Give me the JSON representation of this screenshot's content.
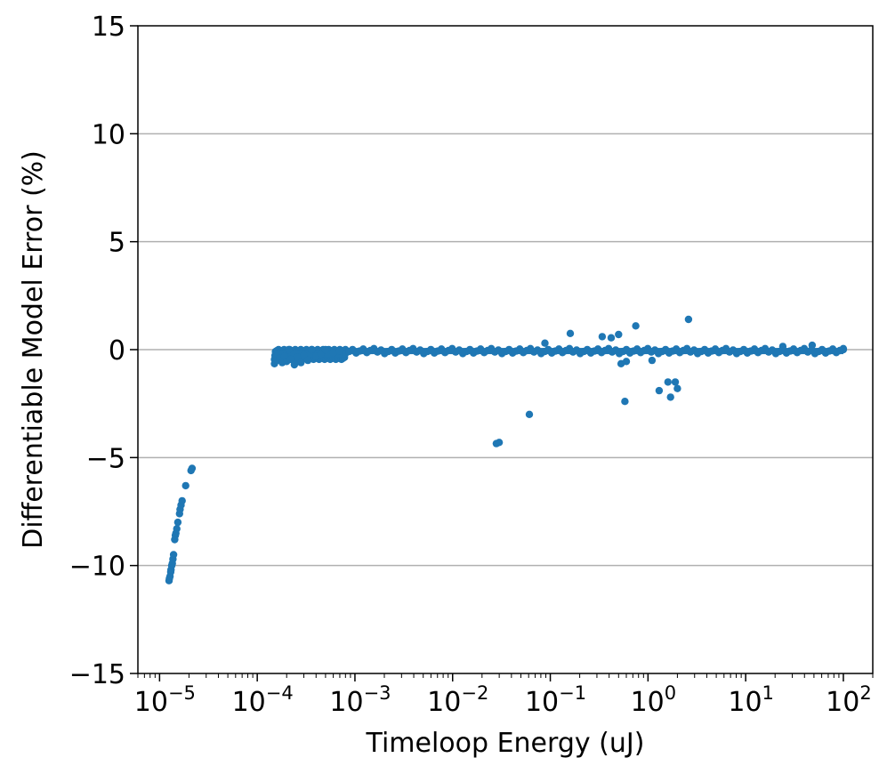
{
  "chart_data": {
    "type": "scatter",
    "title": "",
    "xlabel": "Timeloop Energy (uJ)",
    "ylabel": "Differentiable Model Error (%)",
    "xscale": "log",
    "xlim": [
      6e-06,
      200
    ],
    "ylim": [
      -15,
      15
    ],
    "xticks": [
      {
        "value": 1e-05,
        "base": "10",
        "exp": "−5"
      },
      {
        "value": 0.0001,
        "base": "10",
        "exp": "−4"
      },
      {
        "value": 0.001,
        "base": "10",
        "exp": "−3"
      },
      {
        "value": 0.01,
        "base": "10",
        "exp": "−2"
      },
      {
        "value": 0.1,
        "base": "10",
        "exp": "−1"
      },
      {
        "value": 1,
        "base": "10",
        "exp": "0"
      },
      {
        "value": 10,
        "base": "10",
        "exp": "1"
      },
      {
        "value": 100,
        "base": "10",
        "exp": "2"
      }
    ],
    "yticks": [
      {
        "value": 15,
        "label": "15"
      },
      {
        "value": 10,
        "label": "10"
      },
      {
        "value": 5,
        "label": "5"
      },
      {
        "value": 0,
        "label": "0"
      },
      {
        "value": -5,
        "label": "−5"
      },
      {
        "value": -10,
        "label": "−10"
      },
      {
        "value": -15,
        "label": "−15"
      }
    ],
    "grid": "y-major",
    "legend": "none",
    "color": "#1f77b4",
    "series": [
      {
        "points": [
          [
            1.25e-05,
            -10.7
          ],
          [
            1.26e-05,
            -10.6
          ],
          [
            1.28e-05,
            -10.5
          ],
          [
            1.3e-05,
            -10.3
          ],
          [
            1.31e-05,
            -10.2
          ],
          [
            1.33e-05,
            -10.0
          ],
          [
            1.35e-05,
            -9.9
          ],
          [
            1.37e-05,
            -9.7
          ],
          [
            1.39e-05,
            -9.5
          ],
          [
            1.43e-05,
            -8.8
          ],
          [
            1.45e-05,
            -8.6
          ],
          [
            1.47e-05,
            -8.5
          ],
          [
            1.5e-05,
            -8.3
          ],
          [
            1.54e-05,
            -8.0
          ],
          [
            1.6e-05,
            -7.6
          ],
          [
            1.62e-05,
            -7.4
          ],
          [
            1.66e-05,
            -7.2
          ],
          [
            1.7e-05,
            -7.0
          ],
          [
            1.85e-05,
            -6.3
          ],
          [
            2.1e-05,
            -5.6
          ],
          [
            2.15e-05,
            -5.5
          ],
          [
            0.00015,
            -0.65
          ],
          [
            0.00016,
            -0.5
          ],
          [
            0.00017,
            -0.4
          ],
          [
            0.00018,
            -0.6
          ],
          [
            0.00019,
            -0.3
          ],
          [
            0.0002,
            -0.55
          ],
          [
            0.00021,
            0.0
          ],
          [
            0.00022,
            -0.45
          ],
          [
            0.00024,
            -0.7
          ],
          [
            0.00026,
            -0.35
          ],
          [
            0.00028,
            -0.6
          ],
          [
            0.0003,
            -0.25
          ],
          [
            0.00033,
            -0.5
          ],
          [
            0.00036,
            0.0
          ],
          [
            0.0004,
            -0.3
          ],
          [
            0.00045,
            -0.2
          ],
          [
            0.0005,
            0.0
          ],
          [
            0.0006,
            -0.15
          ],
          [
            0.0007,
            -0.05
          ],
          [
            0.028,
            -4.35
          ],
          [
            0.03,
            -4.3
          ],
          [
            0.061,
            -3.0
          ],
          [
            0.088,
            0.3
          ],
          [
            0.16,
            0.75
          ],
          [
            0.34,
            0.6
          ],
          [
            0.42,
            0.55
          ],
          [
            0.5,
            0.7
          ],
          [
            0.75,
            1.1
          ],
          [
            0.53,
            -0.65
          ],
          [
            0.6,
            -0.55
          ],
          [
            0.58,
            -2.4
          ],
          [
            1.1,
            -0.5
          ],
          [
            1.3,
            -1.9
          ],
          [
            1.6,
            -1.5
          ],
          [
            1.7,
            -2.2
          ],
          [
            1.9,
            -1.5
          ],
          [
            2.0,
            -1.8
          ],
          [
            2.6,
            1.4
          ],
          [
            24,
            0.15
          ],
          [
            48,
            0.2
          ],
          [
            100,
            0.0
          ]
        ],
        "bands": [
          {
            "x_from": 0.00015,
            "x_to": 0.0008,
            "y_min": -0.45,
            "y_max": 0.0
          },
          {
            "x_from": 0.0008,
            "x_to": 100,
            "y_min": -0.18,
            "y_max": 0.05
          }
        ]
      }
    ]
  }
}
